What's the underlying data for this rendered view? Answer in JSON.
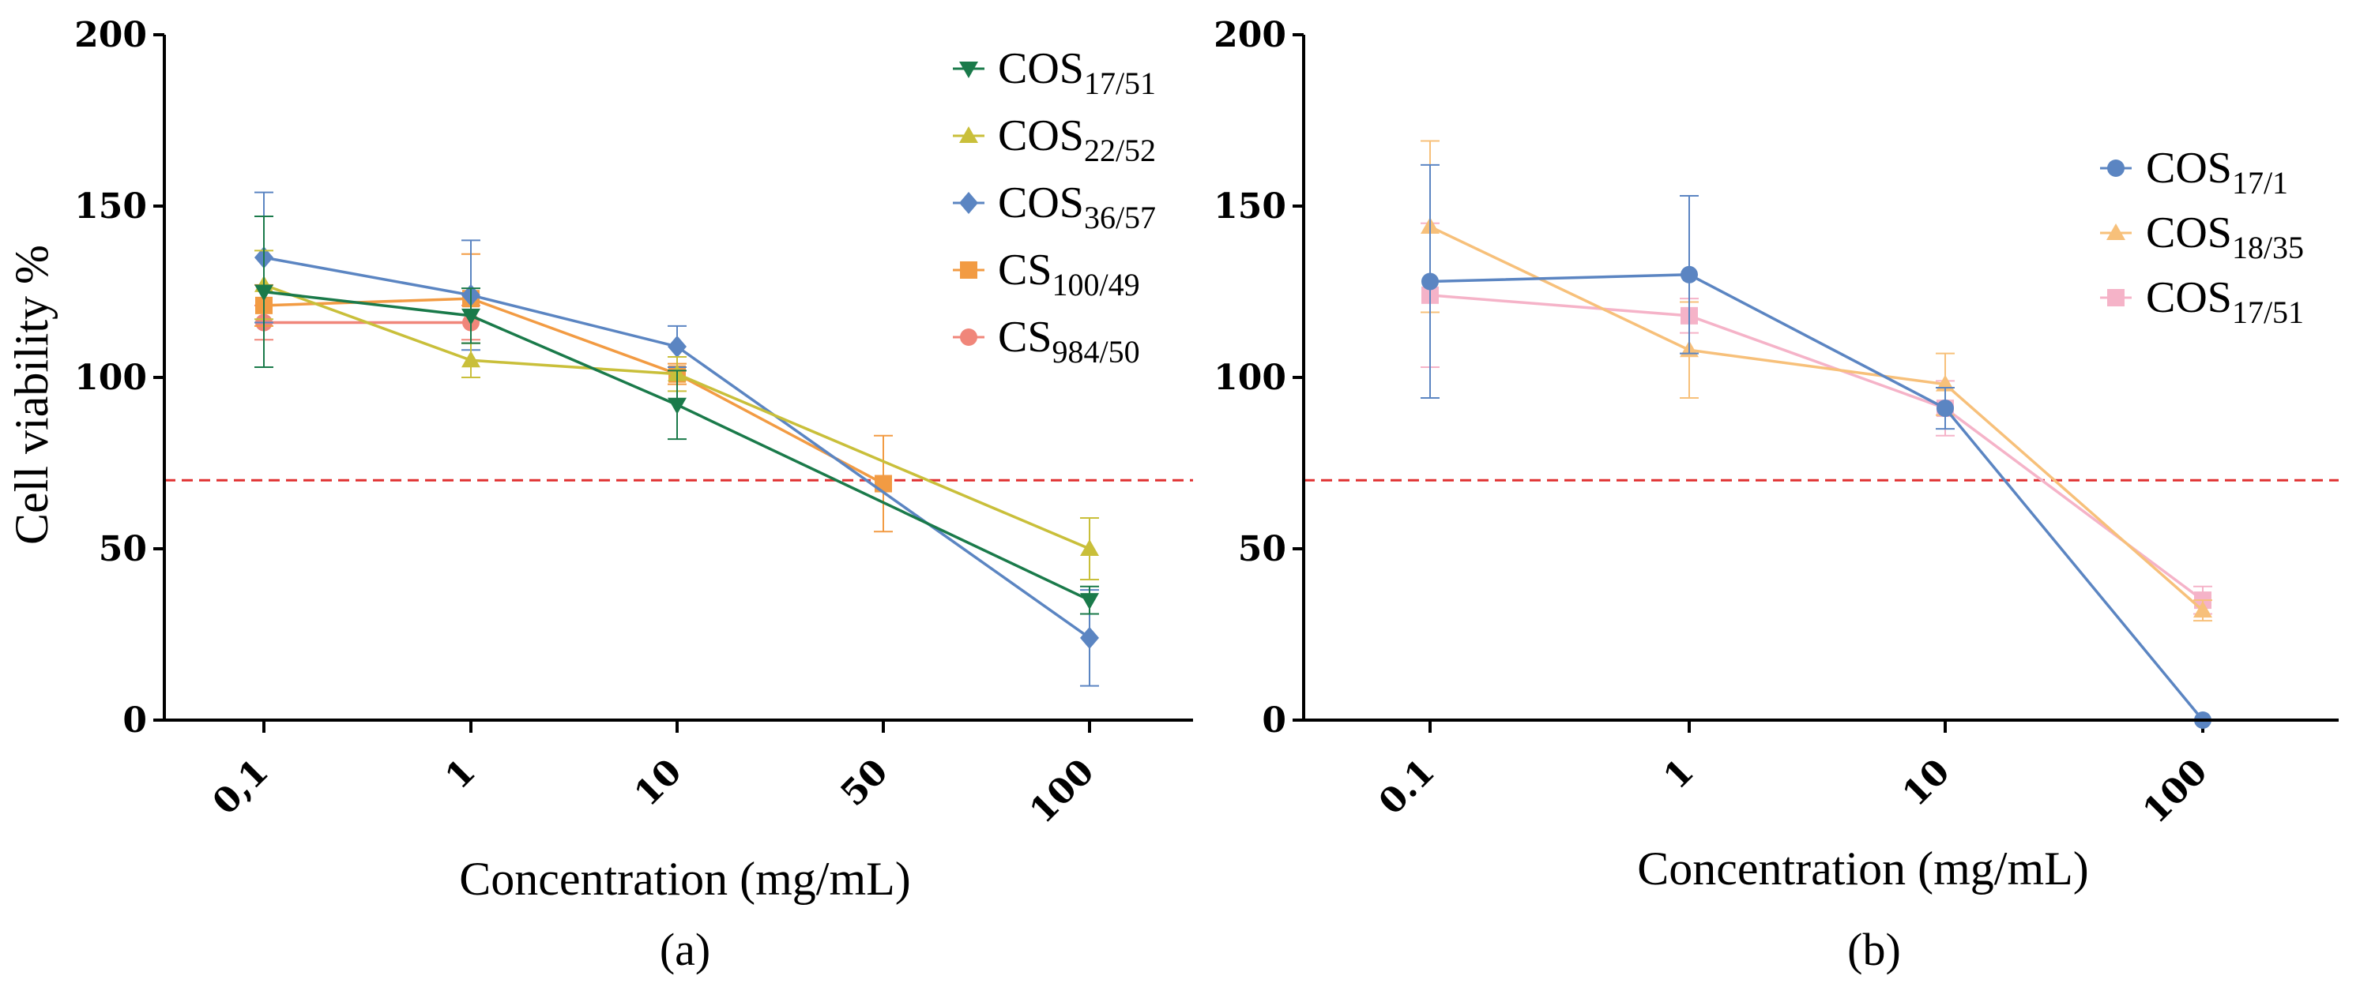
{
  "chart_data": [
    {
      "id": "a",
      "type": "line",
      "panel_label": "(a)",
      "xlabel": "Concentration (mg/mL)",
      "ylabel": "Cell viability %",
      "ylim": [
        0,
        200
      ],
      "yticks": [
        0,
        50,
        100,
        150,
        200
      ],
      "categories": [
        "0,1",
        "1",
        "10",
        "50",
        "100"
      ],
      "reference_line": 70,
      "legend_position": "top-right",
      "series": [
        {
          "name": "COS",
          "sub": "17/51",
          "color": "#1a7a4a",
          "marker": "triangle-down",
          "x": [
            "0,1",
            "1",
            "10",
            "100"
          ],
          "values": [
            125,
            118,
            92,
            35
          ],
          "errors": [
            22,
            8,
            10,
            4
          ]
        },
        {
          "name": "COS",
          "sub": "22/52",
          "color": "#c9bf3a",
          "marker": "triangle-up",
          "x": [
            "0,1",
            "1",
            "10",
            "100"
          ],
          "values": [
            127,
            105,
            101,
            50
          ],
          "errors": [
            10,
            5,
            5,
            9
          ]
        },
        {
          "name": "COS",
          "sub": "36/57",
          "color": "#5b85c2",
          "marker": "diamond",
          "x": [
            "0,1",
            "1",
            "10",
            "100"
          ],
          "values": [
            135,
            124,
            109,
            24
          ],
          "errors": [
            19,
            16,
            6,
            14
          ]
        },
        {
          "name": "CS",
          "sub": "100/49",
          "color": "#f29b43",
          "marker": "square",
          "x": [
            "0,1",
            "1",
            "10",
            "50"
          ],
          "values": [
            121,
            123,
            101,
            69
          ],
          "errors": [
            6,
            13,
            3,
            14
          ]
        },
        {
          "name": "CS",
          "sub": "984/50",
          "color": "#f0867a",
          "marker": "circle",
          "x": [
            "0,1",
            "1"
          ],
          "values": [
            116,
            116
          ],
          "errors": [
            5,
            5
          ]
        }
      ]
    },
    {
      "id": "b",
      "type": "line",
      "panel_label": "(b)",
      "xlabel": "Concentration (mg/mL)",
      "ylabel": "",
      "ylim": [
        0,
        200
      ],
      "yticks": [
        0,
        50,
        100,
        150,
        200
      ],
      "categories": [
        "0.1",
        "1",
        "10",
        "100"
      ],
      "reference_line": 70,
      "legend_position": "top-right",
      "series": [
        {
          "name": "COS",
          "sub": "17/1",
          "color": "#5b85c2",
          "marker": "circle",
          "x": [
            "0.1",
            "1",
            "10",
            "100"
          ],
          "values": [
            128,
            130,
            91,
            0
          ],
          "errors": [
            34,
            23,
            6,
            0
          ]
        },
        {
          "name": "COS",
          "sub": "18/35",
          "color": "#f7c07a",
          "marker": "triangle-up",
          "x": [
            "0.1",
            "1",
            "10",
            "100"
          ],
          "values": [
            144,
            108,
            98,
            32
          ],
          "errors": [
            25,
            14,
            9,
            3
          ]
        },
        {
          "name": "COS",
          "sub": "17/51",
          "color": "#f5b3c8",
          "marker": "square",
          "x": [
            "0.1",
            "1",
            "10",
            "100"
          ],
          "values": [
            124,
            118,
            91,
            35
          ],
          "errors": [
            21,
            5,
            8,
            4
          ]
        }
      ]
    }
  ]
}
